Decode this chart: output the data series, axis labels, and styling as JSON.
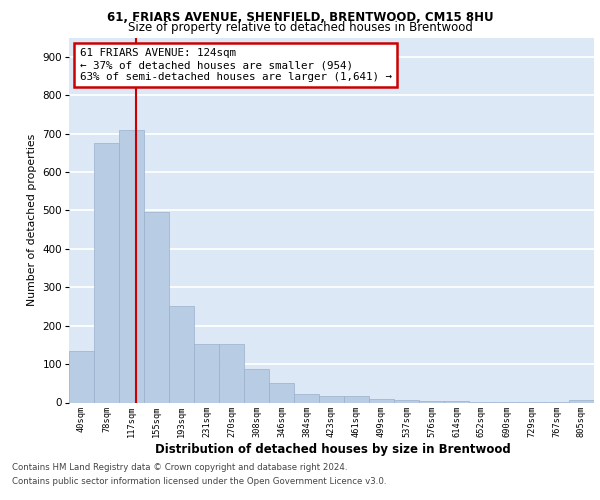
{
  "title1": "61, FRIARS AVENUE, SHENFIELD, BRENTWOOD, CM15 8HU",
  "title2": "Size of property relative to detached houses in Brentwood",
  "xlabel": "Distribution of detached houses by size in Brentwood",
  "ylabel": "Number of detached properties",
  "footnote1": "Contains HM Land Registry data © Crown copyright and database right 2024.",
  "footnote2": "Contains public sector information licensed under the Open Government Licence v3.0.",
  "bar_labels": [
    "40sqm",
    "78sqm",
    "117sqm",
    "155sqm",
    "193sqm",
    "231sqm",
    "270sqm",
    "308sqm",
    "346sqm",
    "384sqm",
    "423sqm",
    "461sqm",
    "499sqm",
    "537sqm",
    "576sqm",
    "614sqm",
    "652sqm",
    "690sqm",
    "729sqm",
    "767sqm",
    "805sqm"
  ],
  "bar_values": [
    135,
    675,
    710,
    495,
    250,
    152,
    152,
    88,
    50,
    22,
    17,
    17,
    10,
    6,
    5,
    3,
    2,
    1,
    1,
    1,
    7
  ],
  "bar_color": "#b8cce4",
  "bar_edge_color": "#9ab0cc",
  "bg_color": "#dce8f5",
  "grid_color": "#ffffff",
  "annotation_text": "61 FRIARS AVENUE: 124sqm\n← 37% of detached houses are smaller (954)\n63% of semi-detached houses are larger (1,641) →",
  "annotation_box_color": "#ffffff",
  "annotation_box_edge_color": "#cc0000",
  "ylim": [
    0,
    950
  ],
  "yticks": [
    0,
    100,
    200,
    300,
    400,
    500,
    600,
    700,
    800,
    900
  ]
}
